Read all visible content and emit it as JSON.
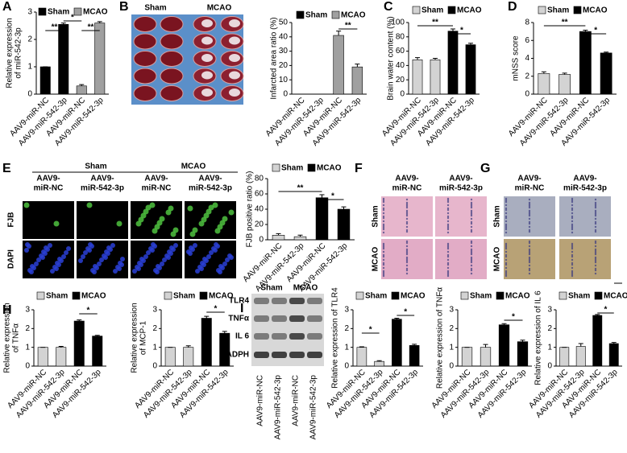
{
  "panel_labels": [
    "A",
    "B",
    "C",
    "D",
    "E",
    "F",
    "G",
    "H",
    "I"
  ],
  "images": {
    "B": {
      "columns": [
        "Sham",
        "MCAO"
      ]
    },
    "E": {
      "columns": [
        "Sham",
        "MCAO"
      ],
      "subcolumns": [
        [
          "AAV9-",
          "miR-NC"
        ],
        [
          "AAV9-",
          "miR-542-3p"
        ],
        [
          "AAV9-",
          "miR-NC"
        ],
        [
          "AAV9-",
          "miR-542-3p"
        ]
      ],
      "rows": [
        "FJB",
        "DAPI"
      ]
    },
    "F": {
      "columns": [
        [
          "AAV9-",
          "miR-NC"
        ],
        [
          "AAV9-",
          "miR-542-3p"
        ]
      ],
      "rows": [
        "Sham",
        "MCAO"
      ]
    },
    "G": {
      "columns": [
        [
          "AAV9-",
          "miR-NC"
        ],
        [
          "AAV9-",
          "miR-542-3p"
        ]
      ],
      "rows": [
        "Sham",
        "MCAO"
      ]
    },
    "I": {
      "columns": [
        "Sham",
        "MCAO"
      ],
      "rows": [
        "TLR4",
        "TNFα",
        "IL 6",
        "GADPH"
      ],
      "categories": [
        "AAV9-miR-NC",
        "AAV9-miR-542-3p",
        "AAV9-miR-NC",
        "AAV9-miR-542-3p"
      ]
    }
  },
  "chart_data": [
    {
      "type": "bar",
      "ylabel": [
        "Relative expression",
        "of miR-542-3p"
      ],
      "categories": [
        "AAV9-miR-NC",
        "AAV9-miR-542-3p",
        "AAV9-miR-NC",
        "AAV9-miR-542-3p"
      ],
      "series": [
        {
          "name": "Sham",
          "color": "#000000",
          "values": [
            1.0,
            2.55,
            null,
            null
          ],
          "errors": [
            0,
            0.05,
            null,
            null
          ]
        },
        {
          "name": "MCAO",
          "color": "#a0a0a0",
          "values": [
            null,
            null,
            0.3,
            2.6
          ],
          "errors": [
            null,
            null,
            0.05,
            0.05
          ]
        }
      ],
      "ylim": [
        0,
        3
      ],
      "yticks": [
        0,
        1,
        2,
        3
      ],
      "annotations": [
        "**",
        "*",
        "**"
      ]
    },
    {
      "type": "bar",
      "ylabel": [
        "Infarcted area ratio (%)"
      ],
      "categories": [
        "AAV9-miR-NC",
        "AAV9-miR-542-3p",
        "AAV9-miR-NC",
        "AAV9-miR-542-3p"
      ],
      "series": [
        {
          "name": "Sham",
          "color": "#000000",
          "values": [
            0,
            0,
            null,
            null
          ],
          "errors": [
            0,
            0,
            null,
            null
          ]
        },
        {
          "name": "MCAO",
          "color": "#a0a0a0",
          "values": [
            null,
            null,
            41,
            19
          ],
          "errors": [
            null,
            null,
            3,
            2
          ]
        }
      ],
      "ylim": [
        0,
        50
      ],
      "yticks": [
        0,
        10,
        20,
        30,
        40,
        50
      ],
      "annotations": [
        "**"
      ]
    },
    {
      "type": "bar",
      "ylabel": [
        "Brain water content (%)"
      ],
      "categories": [
        "AAV9-miR-NC",
        "AAV9-miR-542-3p",
        "AAV9-miR-NC",
        "AAV9-miR-542-3p"
      ],
      "series": [
        {
          "name": "Sham",
          "color": "#d3d3d3",
          "values": [
            48,
            48,
            null,
            null
          ],
          "errors": [
            3,
            2,
            null,
            null
          ]
        },
        {
          "name": "MCAO",
          "color": "#000000",
          "values": [
            null,
            null,
            88,
            69
          ],
          "errors": [
            null,
            null,
            3,
            2
          ]
        }
      ],
      "ylim": [
        0,
        100
      ],
      "yticks": [
        0,
        20,
        40,
        60,
        80,
        100
      ],
      "annotations": [
        "**",
        "*"
      ]
    },
    {
      "type": "bar",
      "ylabel": [
        "mNSS score"
      ],
      "categories": [
        "AAV9-miR-NC",
        "AAV9-miR-542-3p",
        "AAV9-miR-NC",
        "AAV9-miR-542-3p"
      ],
      "series": [
        {
          "name": "Sham",
          "color": "#d3d3d3",
          "values": [
            2.3,
            2.2,
            null,
            null
          ],
          "errors": [
            0.2,
            0.15,
            null,
            null
          ]
        },
        {
          "name": "MCAO",
          "color": "#000000",
          "values": [
            null,
            null,
            7.0,
            4.6
          ],
          "errors": [
            null,
            null,
            0.15,
            0.1
          ]
        }
      ],
      "ylim": [
        0,
        8
      ],
      "yticks": [
        0,
        2,
        4,
        6,
        8
      ],
      "annotations": [
        "**",
        "*"
      ]
    },
    {
      "type": "bar",
      "ylabel": [
        "FJB positive ratio (%)"
      ],
      "categories": [
        "AAV9-miR-NC",
        "AAV9-miR-542-3p",
        "AAV9-miR-NC",
        "AAV9-miR-542-3p"
      ],
      "series": [
        {
          "name": "Sham",
          "color": "#d3d3d3",
          "values": [
            6,
            4,
            null,
            null
          ],
          "errors": [
            2,
            2,
            null,
            null
          ]
        },
        {
          "name": "MCAO",
          "color": "#000000",
          "values": [
            null,
            null,
            55,
            40
          ],
          "errors": [
            null,
            null,
            4,
            3
          ]
        }
      ],
      "ylim": [
        0,
        80
      ],
      "yticks": [
        0,
        20,
        40,
        60,
        80
      ],
      "annotations": [
        "**",
        "*"
      ]
    },
    {
      "type": "bar",
      "ylabel": [
        "Relative expression",
        "of TNFα"
      ],
      "categories": [
        "AAV9-miR-NC",
        "AAV9-miR-542-3p",
        "AAV9-miR-NC",
        "AAV9-miR-542-3p"
      ],
      "series": [
        {
          "name": "Sham",
          "color": "#d3d3d3",
          "values": [
            1,
            1,
            null,
            null
          ],
          "errors": [
            0,
            0.05,
            null,
            null
          ]
        },
        {
          "name": "MCAO",
          "color": "#000000",
          "values": [
            null,
            null,
            2.4,
            1.6
          ],
          "errors": [
            null,
            null,
            0.06,
            0.04
          ]
        }
      ],
      "ylim": [
        0,
        3
      ],
      "yticks": [
        0,
        1,
        2,
        3
      ],
      "annotations": [
        "*"
      ]
    },
    {
      "type": "bar",
      "ylabel": [
        "Relative expression",
        "of MCP-1"
      ],
      "categories": [
        "AAV9-miR-NC",
        "AAV9-miR-542-3p",
        "AAV9-miR-NC",
        "AAV9-miR-542-3p"
      ],
      "series": [
        {
          "name": "Sham",
          "color": "#d3d3d3",
          "values": [
            1,
            1,
            null,
            null
          ],
          "errors": [
            0,
            0.08,
            null,
            null
          ]
        },
        {
          "name": "MCAO",
          "color": "#000000",
          "values": [
            null,
            null,
            2.55,
            1.75
          ],
          "errors": [
            null,
            null,
            0.1,
            0.1
          ]
        }
      ],
      "ylim": [
        0,
        3
      ],
      "yticks": [
        0,
        1,
        2,
        3
      ],
      "annotations": [
        "*"
      ]
    },
    {
      "type": "bar",
      "ylabel": [
        "Relative expression of TLR4"
      ],
      "categories": [
        "AAV9-miR-NC",
        "AAV9-miR-542-3p",
        "AAV9-miR-NC",
        "AAV9-miR-542-3p"
      ],
      "series": [
        {
          "name": "Sham",
          "color": "#d3d3d3",
          "values": [
            1,
            0.25,
            null,
            null
          ],
          "errors": [
            0.03,
            0.04,
            null,
            null
          ]
        },
        {
          "name": "MCAO",
          "color": "#000000",
          "values": [
            null,
            null,
            2.5,
            1.1
          ],
          "errors": [
            null,
            null,
            0.05,
            0.06
          ]
        }
      ],
      "ylim": [
        0,
        3
      ],
      "yticks": [
        0,
        1,
        2,
        3
      ],
      "annotations": [
        "*",
        "*"
      ]
    },
    {
      "type": "bar",
      "ylabel": [
        "Relative expression of TNFα"
      ],
      "categories": [
        "AAV9-miR-NC",
        "AAV9-miR-542-3p",
        "AAV9-miR-NC",
        "AAV9-miR-542-3p"
      ],
      "series": [
        {
          "name": "Sham",
          "color": "#d3d3d3",
          "values": [
            1,
            1,
            null,
            null
          ],
          "errors": [
            0,
            0.15,
            null,
            null
          ]
        },
        {
          "name": "MCAO",
          "color": "#000000",
          "values": [
            null,
            null,
            2.2,
            1.3
          ],
          "errors": [
            null,
            null,
            0.06,
            0.08
          ]
        }
      ],
      "ylim": [
        0,
        3
      ],
      "yticks": [
        0,
        1,
        2,
        3
      ],
      "annotations": [
        "*"
      ]
    },
    {
      "type": "bar",
      "ylabel": [
        "Relative expression of IL 6"
      ],
      "categories": [
        "AAV9-miR-NC",
        "AAV9-miR-542-3p",
        "AAV9-miR-NC",
        "AAV9-miR-542-3p"
      ],
      "series": [
        {
          "name": "Sham",
          "color": "#d3d3d3",
          "values": [
            1,
            1.05,
            null,
            null
          ],
          "errors": [
            0,
            0.15,
            null,
            null
          ]
        },
        {
          "name": "MCAO",
          "color": "#000000",
          "values": [
            null,
            null,
            2.7,
            1.2
          ],
          "errors": [
            null,
            null,
            0.05,
            0.06
          ]
        }
      ],
      "ylim": [
        0,
        3
      ],
      "yticks": [
        0,
        1,
        2,
        3
      ],
      "annotations": [
        "*"
      ]
    }
  ]
}
